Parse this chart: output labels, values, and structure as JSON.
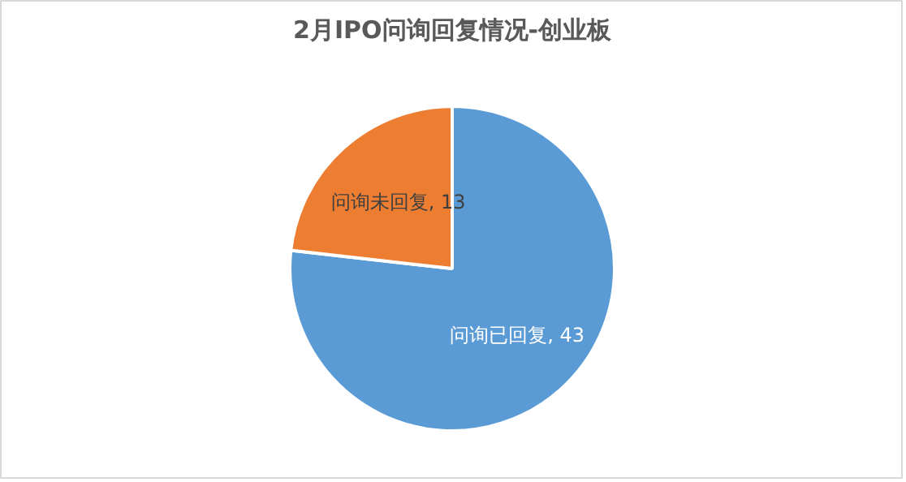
{
  "chart_data": {
    "type": "pie",
    "title": "2月IPO问询回复情况-创业板",
    "categories": [
      "问询已回复",
      "问询未回复"
    ],
    "values": [
      43,
      13
    ],
    "colors": [
      "#5b9bd5",
      "#ed7d31"
    ],
    "value_labels": [
      ", 43",
      ", 13"
    ],
    "legend": false
  }
}
